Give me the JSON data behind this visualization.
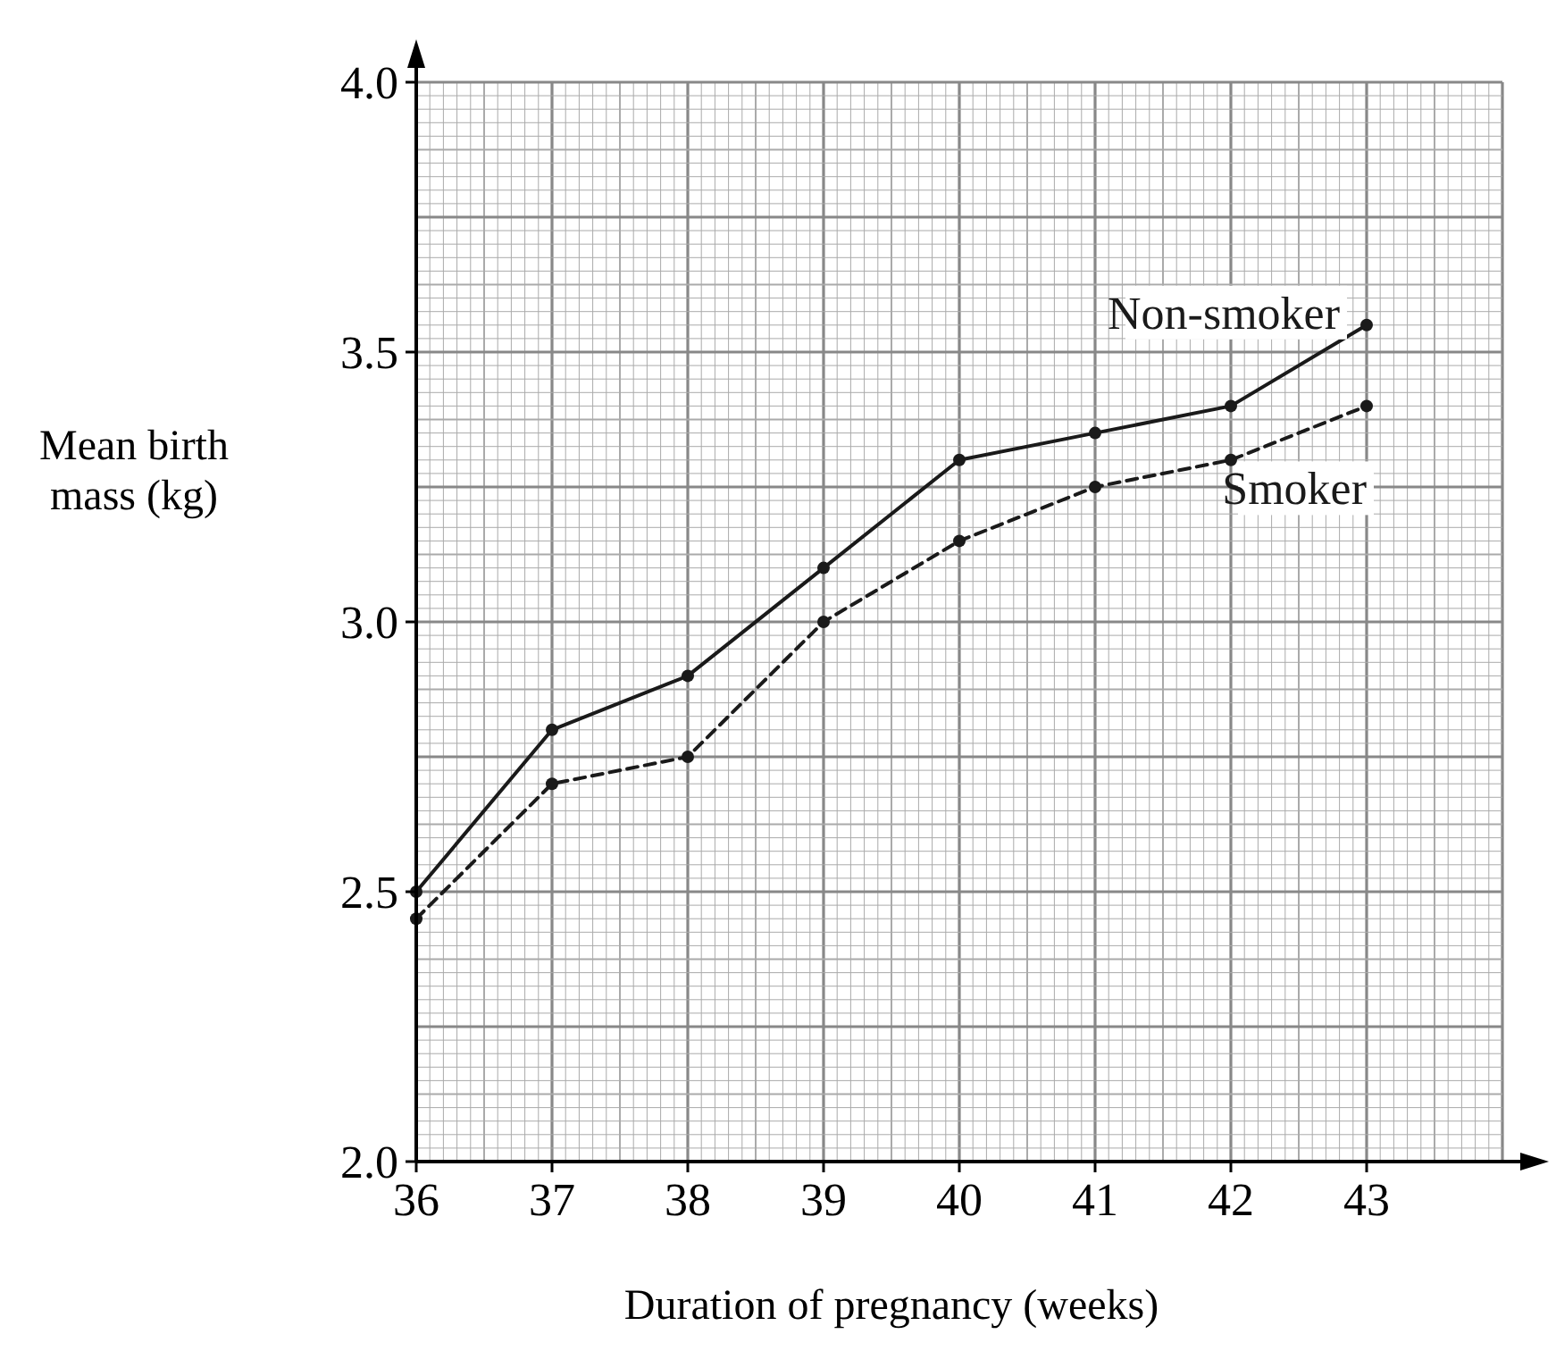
{
  "chart_data": {
    "type": "line",
    "xlabel": "Duration of pregnancy (weeks)",
    "ylabel": "Mean birth mass (kg)",
    "x": [
      36,
      37,
      38,
      39,
      40,
      41,
      42,
      43
    ],
    "series": [
      {
        "name": "Non-smoker",
        "color": "#1a1a1a",
        "line_style": "solid",
        "values": [
          2.5,
          2.8,
          2.9,
          3.1,
          3.3,
          3.35,
          3.4,
          3.55
        ]
      },
      {
        "name": "Smoker",
        "color": "#1a1a1a",
        "line_style": "dashed",
        "values": [
          2.45,
          2.7,
          2.75,
          3.0,
          3.15,
          3.25,
          3.3,
          3.4
        ]
      }
    ],
    "xlim": [
      36,
      44
    ],
    "xticks": [
      36,
      37,
      38,
      39,
      40,
      41,
      42,
      43
    ],
    "ylim": [
      2.0,
      4.0
    ],
    "yticks": [
      {
        "value": 2.0,
        "label": "2.0"
      },
      {
        "value": 2.5,
        "label": "2.5"
      },
      {
        "value": 3.0,
        "label": "3.0"
      },
      {
        "value": 3.5,
        "label": "3.5"
      },
      {
        "value": 4.0,
        "label": "4.0"
      }
    ],
    "grid": true,
    "marker": "circle"
  }
}
